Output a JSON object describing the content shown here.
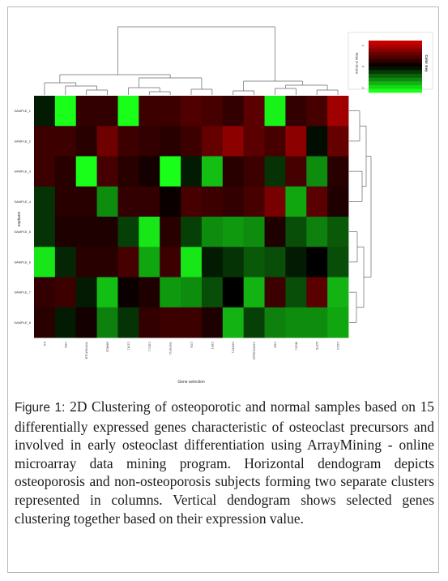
{
  "chart_data": {
    "type": "heatmap",
    "xlabel": "Gene selection",
    "ylabel": "samples",
    "color_key": {
      "title": "Color Key",
      "subtitle": "Row Z-Score",
      "ticks": [
        "-1",
        "0",
        "1"
      ],
      "low_color": "#19ff19",
      "mid_color": "#000000",
      "high_color": "#c80000"
    },
    "columns": [
      "IL6",
      "HSD",
      "TNFRSF11B",
      "SMAD2",
      "CCR1",
      "CSCL1",
      "TNFSF11",
      "CTR",
      "CSF1",
      "NFATC1",
      "CDKN1A/p21",
      "Ctsk",
      "MSK1",
      "ACP5",
      "CD14"
    ],
    "rows": [
      "SAMPLE_1",
      "SAMPLE_2",
      "SAMPLE_3",
      "SAMPLE_4",
      "SAMPLE_5",
      "SAMPLE_6",
      "SAMPLE_7",
      "SAMPLE_8"
    ],
    "values": [
      [
        -0.1,
        -1.0,
        0.25,
        0.25,
        -1.0,
        0.3,
        0.3,
        0.4,
        0.35,
        0.25,
        0.45,
        -0.95,
        0.25,
        0.35,
        0.8
      ],
      [
        0.3,
        0.3,
        0.2,
        0.55,
        0.3,
        0.25,
        0.2,
        0.3,
        0.5,
        0.7,
        0.45,
        0.35,
        0.7,
        -0.05,
        0.5
      ],
      [
        0.3,
        0.2,
        -1.0,
        0.35,
        0.2,
        0.1,
        -1.0,
        -0.1,
        -0.75,
        0.2,
        0.3,
        -0.2,
        0.35,
        -0.55,
        0.2
      ],
      [
        -0.2,
        0.2,
        0.2,
        -0.55,
        0.25,
        0.25,
        0.05,
        0.35,
        0.3,
        0.25,
        0.35,
        0.6,
        -0.65,
        0.45,
        0.15
      ],
      [
        -0.2,
        0.15,
        0.15,
        0.15,
        -0.25,
        -0.9,
        0.2,
        -0.25,
        -0.55,
        -0.6,
        -0.55,
        0.15,
        -0.3,
        -0.5,
        -0.35
      ],
      [
        -0.9,
        -0.15,
        0.2,
        0.2,
        0.35,
        -0.65,
        0.3,
        -0.9,
        -0.1,
        -0.2,
        -0.35,
        -0.3,
        -0.1,
        0.0,
        -0.3
      ],
      [
        0.25,
        0.3,
        -0.1,
        -0.75,
        0.05,
        0.15,
        -0.6,
        -0.55,
        -0.3,
        0.0,
        -0.7,
        0.3,
        -0.3,
        0.45,
        -0.7
      ],
      [
        0.2,
        -0.1,
        0.1,
        -0.5,
        -0.2,
        0.25,
        0.3,
        0.3,
        0.15,
        -0.7,
        -0.25,
        -0.5,
        -0.55,
        -0.55,
        -0.65
      ]
    ]
  },
  "caption": {
    "label": "Figure 1:",
    "text": " 2D Clustering of osteoporotic and normal samples based on 15 differentially expressed genes characteristic of osteoclast precursors and involved in early osteoclast differentiation using ArrayMining - online microarray data mining program. Horizontal dendogram depicts osteoporosis and non-osteoporosis subjects forming two separate clusters represented in columns. Vertical dendogram shows selected genes clustering together based on their expression value."
  }
}
